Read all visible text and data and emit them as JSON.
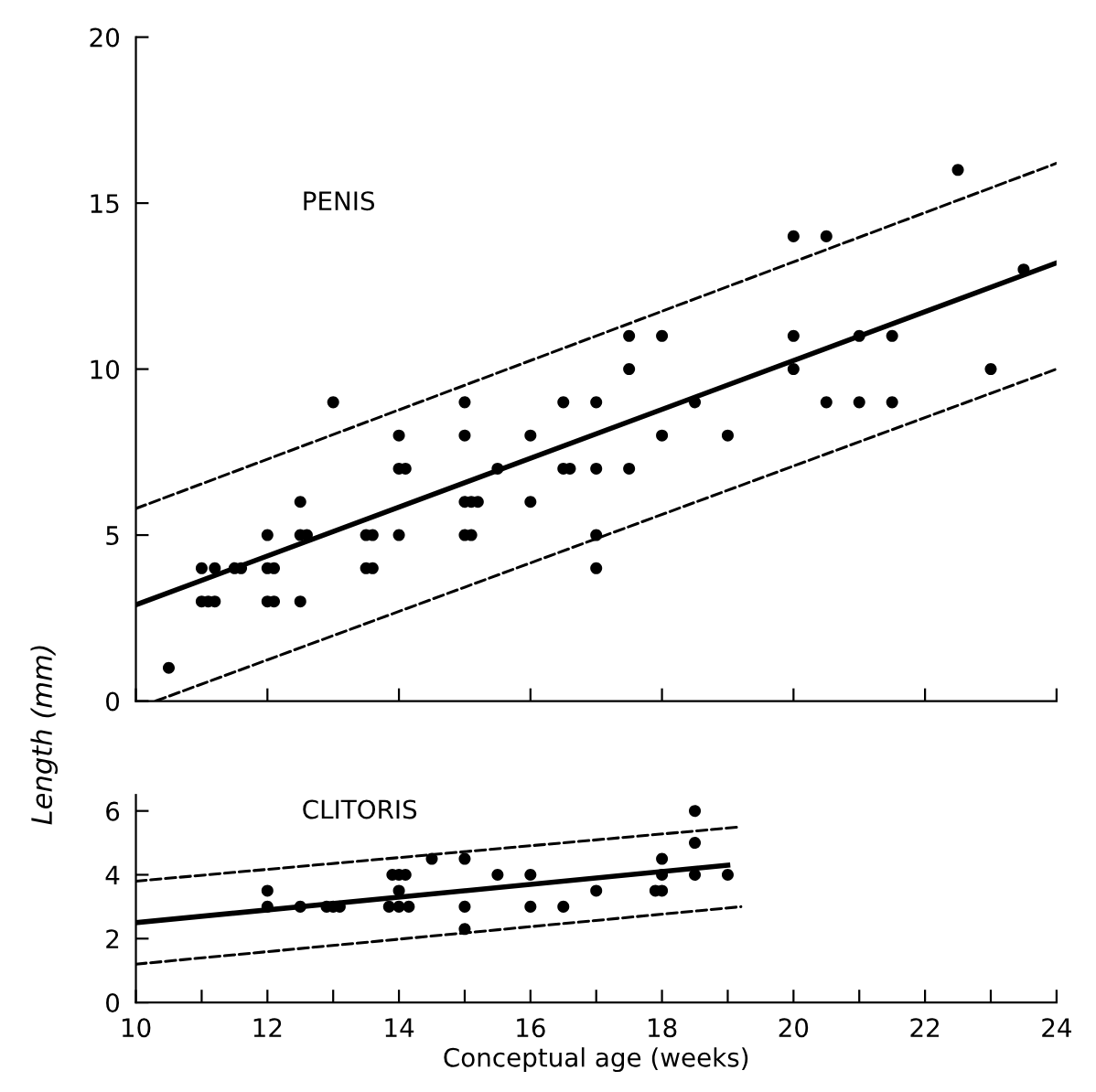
{
  "chart_data": [
    {
      "type": "scatter",
      "ylabel": "Length (mm)",
      "annotations": [
        "PENIS"
      ],
      "xlim": [
        10,
        24
      ],
      "ylim": [
        0,
        20
      ],
      "xticks": [
        10,
        12,
        14,
        16,
        18,
        20,
        22,
        24
      ],
      "yticks": [
        0,
        5,
        10,
        15,
        20
      ],
      "tick_labels": "y",
      "grid": false,
      "legend": false,
      "series": [
        {
          "marker": "circle",
          "color": "#000000",
          "x": [
            10.5,
            11,
            11.1,
            11.2,
            11,
            11.2,
            11.5,
            11.6,
            12,
            12.1,
            12,
            12.1,
            12,
            12.5,
            12.5,
            12.6,
            12.5,
            13,
            13.5,
            13.6,
            13.5,
            13.6,
            14,
            14,
            14.1,
            14,
            15,
            15.1,
            15,
            15.1,
            15.2,
            15,
            15,
            15.5,
            16,
            16,
            16.5,
            16.6,
            16.5,
            17,
            17,
            17,
            17,
            17.5,
            17.5,
            17.5,
            18,
            18,
            18.5,
            19,
            20,
            20,
            20,
            20.5,
            20.5,
            21,
            21,
            21.5,
            21.5,
            22.5,
            23,
            23.5
          ],
          "values": [
            1,
            3,
            3,
            3,
            4,
            4,
            4,
            4,
            3,
            3,
            4,
            4,
            5,
            3,
            5,
            5,
            6,
            9,
            4,
            4,
            5,
            5,
            5,
            7,
            7,
            8,
            5,
            5,
            6,
            6,
            6,
            8,
            9,
            7,
            6,
            8,
            7,
            7,
            9,
            4,
            5,
            7,
            9,
            7,
            10,
            11,
            8,
            11,
            9,
            8,
            10,
            11,
            14,
            9,
            14,
            9,
            11,
            9,
            11,
            16,
            10,
            13
          ]
        },
        {
          "type": "line",
          "marker": "none",
          "line_style": "solid",
          "color": "#000000",
          "x": [
            10,
            24
          ],
          "values": [
            2.9,
            13.2
          ]
        },
        {
          "type": "line",
          "marker": "none",
          "line_style": "dashed",
          "color": "#000000",
          "x": [
            10,
            24
          ],
          "values": [
            5.8,
            16.2
          ]
        },
        {
          "type": "line",
          "marker": "none",
          "line_style": "dashed",
          "color": "#000000",
          "x": [
            10.3,
            24
          ],
          "values": [
            0,
            10
          ]
        }
      ]
    },
    {
      "type": "scatter",
      "xlabel": "Conceptual age (weeks)",
      "annotations": [
        "CLITORIS"
      ],
      "xlim": [
        10,
        24
      ],
      "ylim": [
        0,
        6.5
      ],
      "xticks": [
        10,
        {
          "value": 11,
          "label": null
        },
        12,
        {
          "value": 13,
          "label": null
        },
        14,
        {
          "value": 15,
          "label": null
        },
        16,
        {
          "value": 17,
          "label": null
        },
        18,
        {
          "value": 19,
          "label": null
        },
        20,
        {
          "value": 21,
          "label": null
        },
        22,
        {
          "value": 23,
          "label": null
        },
        24
      ],
      "yticks": [
        0,
        2,
        4,
        6
      ],
      "grid": false,
      "legend": false,
      "series": [
        {
          "marker": "circle",
          "color": "#000000",
          "x": [
            12,
            12,
            12.5,
            12.9,
            13,
            13.1,
            13.9,
            14,
            14.1,
            14,
            14,
            13.85,
            14.15,
            14.5,
            15,
            15,
            15,
            15.5,
            16,
            16,
            16.5,
            17,
            18,
            18,
            17.9,
            18,
            18.5,
            18.5,
            18.5,
            19
          ],
          "values": [
            3.5,
            3,
            3,
            3,
            3,
            3,
            4,
            4,
            4,
            3.5,
            3,
            3,
            3,
            4.5,
            4.5,
            3,
            2.3,
            4,
            4,
            3,
            3,
            3.5,
            4.5,
            4,
            3.5,
            3.5,
            6,
            5,
            4,
            4
          ]
        },
        {
          "type": "line",
          "marker": "none",
          "line_style": "solid",
          "color": "#000000",
          "x": [
            10,
            19
          ],
          "values": [
            2.5,
            4.3
          ]
        },
        {
          "type": "line",
          "marker": "none",
          "line_style": "dashed",
          "color": "#000000",
          "x": [
            10,
            19.2
          ],
          "values": [
            3.8,
            5.5
          ]
        },
        {
          "type": "line",
          "marker": "none",
          "line_style": "dashed",
          "color": "#000000",
          "x": [
            10,
            19.2
          ],
          "values": [
            1.2,
            3.0
          ]
        }
      ]
    }
  ]
}
